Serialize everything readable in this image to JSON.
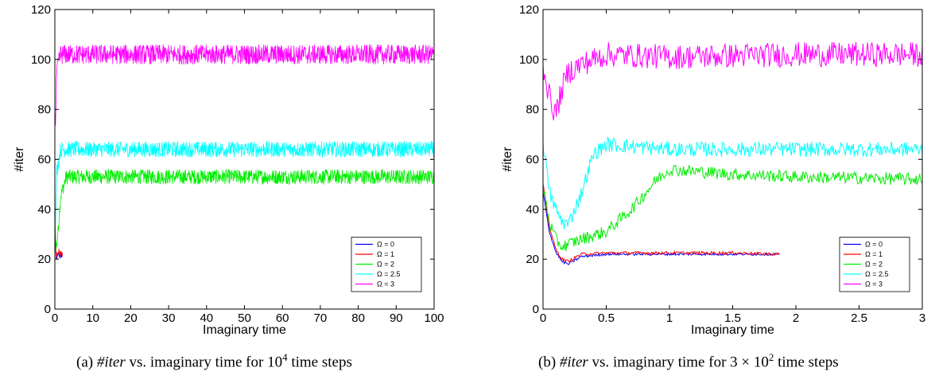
{
  "chart_data": [
    {
      "type": "line",
      "id": "a",
      "xlabel": "Imaginary time",
      "ylabel": "#iter",
      "xlim": [
        0,
        100
      ],
      "ylim": [
        0,
        120
      ],
      "xticks": [
        0,
        10,
        20,
        30,
        40,
        50,
        60,
        70,
        80,
        90,
        100
      ],
      "yticks": [
        0,
        20,
        40,
        60,
        80,
        100,
        120
      ],
      "legend_position": "lower-right",
      "grid": false,
      "caption": {
        "label": "(a)",
        "var": "#iter",
        "text": "vs. imaginary time for",
        "base": "10",
        "exp": "4",
        "tail": "time steps"
      },
      "series": [
        {
          "name": "Ω = 0",
          "color": "#0000ff",
          "x": [
            0,
            0.3,
            0.6,
            1,
            1.5,
            2
          ],
          "y": [
            40,
            19,
            21,
            22,
            21,
            22
          ],
          "noise": 1.2
        },
        {
          "name": "Ω = 1",
          "color": "#ff0000",
          "x": [
            0,
            0.3,
            0.6,
            1,
            1.5,
            2
          ],
          "y": [
            42,
            20,
            22,
            23,
            22,
            22
          ],
          "noise": 1.4
        },
        {
          "name": "Ω = 2",
          "color": "#00ee00",
          "x": [
            0,
            0.3,
            0.8,
            1.5,
            3,
            100
          ],
          "y": [
            40,
            24,
            30,
            45,
            53,
            53
          ],
          "noise": 3
        },
        {
          "name": "Ω = 2.5",
          "color": "#00ffff",
          "x": [
            0,
            0.2,
            0.5,
            1.5,
            3,
            100
          ],
          "y": [
            48,
            34,
            55,
            64,
            64,
            64
          ],
          "noise": 3.2
        },
        {
          "name": "Ω = 3",
          "color": "#ff00ff",
          "x": [
            0,
            0.2,
            0.5,
            1.5,
            3,
            100
          ],
          "y": [
            80,
            75,
            95,
            102,
            102,
            102
          ],
          "noise": 4
        }
      ]
    },
    {
      "type": "line",
      "id": "b",
      "xlabel": "Imaginary time",
      "ylabel": "#iter",
      "xlim": [
        0,
        3
      ],
      "ylim": [
        0,
        120
      ],
      "xticks": [
        0,
        0.5,
        1,
        1.5,
        2,
        2.5,
        3
      ],
      "yticks": [
        0,
        20,
        40,
        60,
        80,
        100,
        120
      ],
      "legend_position": "lower-right",
      "grid": false,
      "caption": {
        "label": "(b)",
        "var": "#iter",
        "text": "vs. imaginary time for",
        "base": "3 × 10",
        "exp": "2",
        "tail": "time steps"
      },
      "series": [
        {
          "name": "Ω = 0",
          "color": "#0000ff",
          "x": [
            0,
            0.05,
            0.1,
            0.15,
            0.2,
            0.3,
            0.5,
            1,
            1.5,
            1.87
          ],
          "y": [
            47,
            31,
            23,
            19,
            18,
            21,
            22,
            22,
            22,
            22
          ],
          "noise": 0.5
        },
        {
          "name": "Ω = 1",
          "color": "#ff0000",
          "x": [
            0,
            0.05,
            0.1,
            0.15,
            0.2,
            0.3,
            0.5,
            1,
            1.5,
            1.87
          ],
          "y": [
            50,
            33,
            24,
            20,
            19,
            22,
            22.5,
            22.5,
            22.5,
            22
          ],
          "noise": 0.6
        },
        {
          "name": "Ω = 2",
          "color": "#00ee00",
          "x": [
            0,
            0.05,
            0.1,
            0.15,
            0.3,
            0.5,
            0.7,
            0.9,
            1,
            1.5,
            2,
            3
          ],
          "y": [
            50,
            35,
            28,
            25,
            28,
            31,
            40,
            52,
            56,
            54,
            53,
            52
          ],
          "noise": 2.5
        },
        {
          "name": "Ω = 2.5",
          "color": "#00ffff",
          "x": [
            0,
            0.05,
            0.1,
            0.15,
            0.2,
            0.3,
            0.4,
            0.5,
            1,
            2,
            3
          ],
          "y": [
            67,
            47,
            40,
            35,
            34,
            46,
            62,
            66,
            64,
            64,
            64
          ],
          "noise": 3
        },
        {
          "name": "Ω = 3",
          "color": "#ff00ff",
          "x": [
            0,
            0.05,
            0.1,
            0.15,
            0.2,
            0.3,
            0.5,
            1,
            2,
            3
          ],
          "y": [
            98,
            85,
            78,
            88,
            95,
            98,
            102,
            101,
            102,
            102
          ],
          "noise": 5
        }
      ]
    }
  ]
}
